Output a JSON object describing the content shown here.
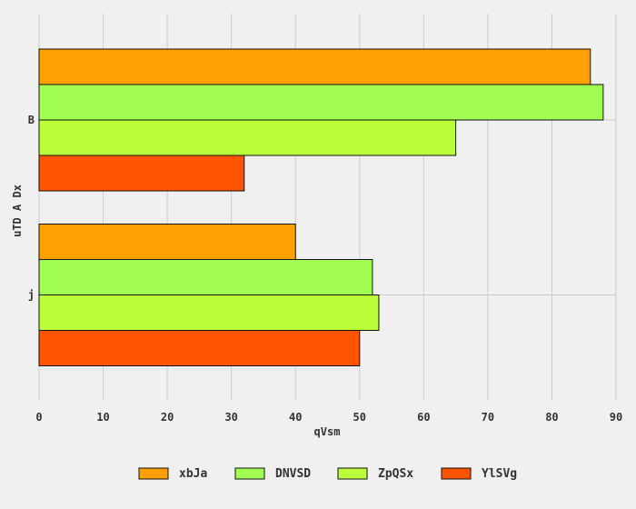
{
  "chart_data": {
    "type": "bar",
    "orientation": "horizontal",
    "categories": [
      "B",
      "j"
    ],
    "series": [
      {
        "name": "xbJa",
        "color": "#ff9f00",
        "values": [
          86,
          40
        ]
      },
      {
        "name": "DNVSD",
        "color": "#a0ff50",
        "values": [
          88,
          52
        ]
      },
      {
        "name": "ZpQSx",
        "color": "#bbff3a",
        "values": [
          65,
          53
        ]
      },
      {
        "name": "YlSVg",
        "color": "#ff5500",
        "values": [
          32,
          50
        ]
      }
    ],
    "xlabel": "qVsm",
    "ylabel": "uTD A Dx",
    "xlim": [
      0,
      90
    ],
    "xticks": [
      0,
      10,
      20,
      30,
      40,
      50,
      60,
      70,
      80,
      90
    ],
    "grid": true,
    "legend_position": "bottom"
  }
}
